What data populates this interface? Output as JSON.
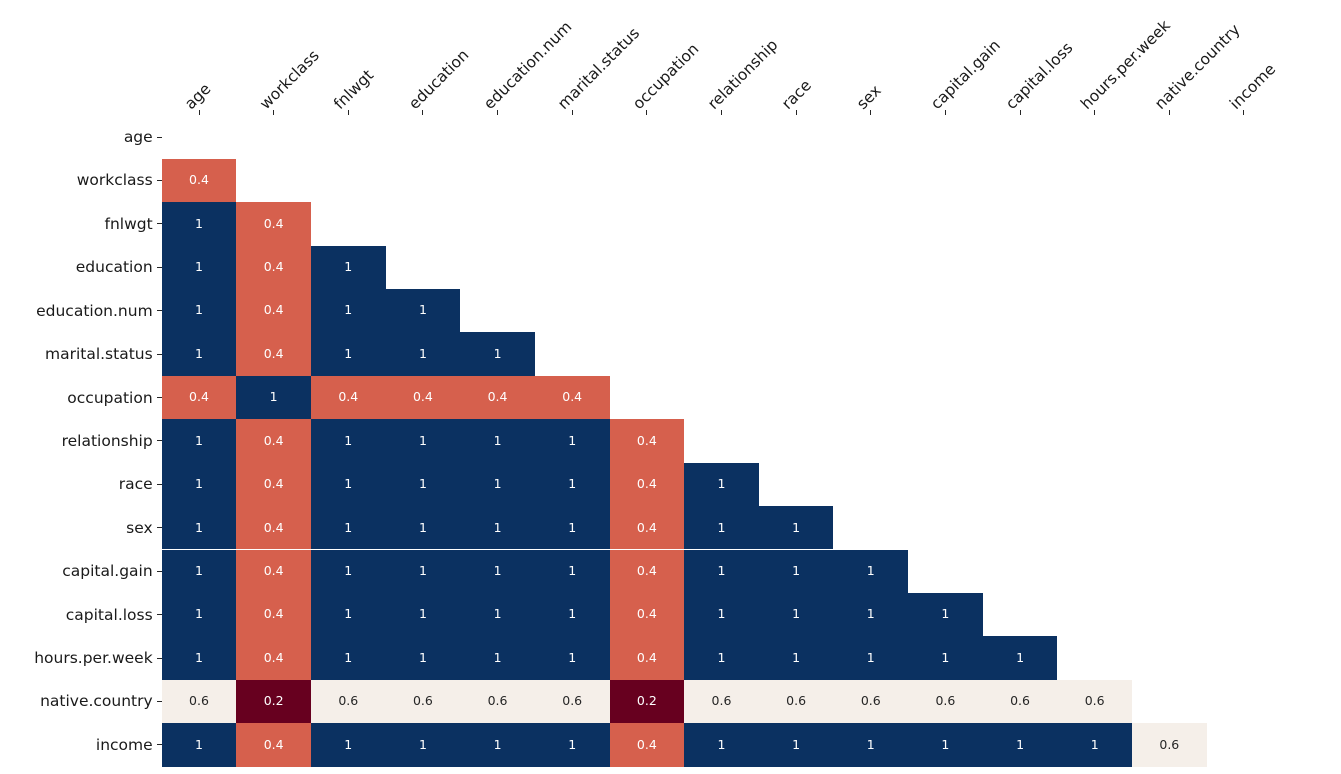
{
  "chart_data": {
    "type": "heatmap",
    "title": "",
    "description": "Lower-triangular matrix heatmap of pairwise values between dataset columns",
    "x_labels": [
      "age",
      "workclass",
      "fnlwgt",
      "education",
      "education.num",
      "marital.status",
      "occupation",
      "relationship",
      "race",
      "sex",
      "capital.gain",
      "capital.loss",
      "hours.per.week",
      "native.country",
      "income"
    ],
    "y_labels": [
      "age",
      "workclass",
      "fnlwgt",
      "education",
      "education.num",
      "marital.status",
      "occupation",
      "relationship",
      "race",
      "sex",
      "capital.gain",
      "capital.loss",
      "hours.per.week",
      "native.country",
      "income"
    ],
    "rows": [
      [],
      [
        0.4
      ],
      [
        1,
        0.4
      ],
      [
        1,
        0.4,
        1
      ],
      [
        1,
        0.4,
        1,
        1
      ],
      [
        1,
        0.4,
        1,
        1,
        1
      ],
      [
        0.4,
        1,
        0.4,
        0.4,
        0.4,
        0.4
      ],
      [
        1,
        0.4,
        1,
        1,
        1,
        1,
        0.4
      ],
      [
        1,
        0.4,
        1,
        1,
        1,
        1,
        0.4,
        1
      ],
      [
        1,
        0.4,
        1,
        1,
        1,
        1,
        0.4,
        1,
        1
      ],
      [
        1,
        0.4,
        1,
        1,
        1,
        1,
        0.4,
        1,
        1,
        1
      ],
      [
        1,
        0.4,
        1,
        1,
        1,
        1,
        0.4,
        1,
        1,
        1,
        1
      ],
      [
        1,
        0.4,
        1,
        1,
        1,
        1,
        0.4,
        1,
        1,
        1,
        1,
        1
      ],
      [
        0.6,
        0.2,
        0.6,
        0.6,
        0.6,
        0.6,
        0.2,
        0.6,
        0.6,
        0.6,
        0.6,
        0.6,
        0.6
      ],
      [
        1,
        0.4,
        1,
        1,
        1,
        1,
        0.4,
        1,
        1,
        1,
        1,
        1,
        1,
        0.6
      ]
    ],
    "value_colors": {
      "1": "#0b3161",
      "0.4": "#d6604d",
      "0.2": "#67001f",
      "0.6": "#f5efe9"
    },
    "value_text_colors": {
      "1": "#ffffff",
      "0.4": "#ffffff",
      "0.2": "#ffffff",
      "0.6": "#262626"
    },
    "background_color": "#ffffff",
    "tick_color": "#262626",
    "label_color": "#1a1a1a",
    "legend": "none",
    "grid": "off"
  }
}
